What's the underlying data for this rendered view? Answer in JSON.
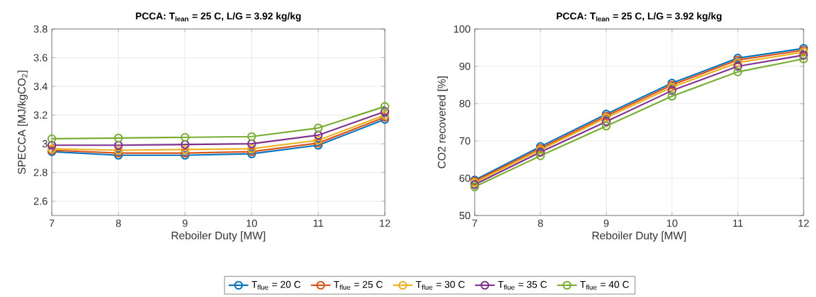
{
  "chart_data": [
    {
      "type": "line",
      "title": "**PCCA: T$_{lean}$ = 25 C, L/G = 3.92 kg/kg**",
      "xlabel": "Reboiler Duty [MW]",
      "ylabel": "SPECCA [MJ/kgCO$_{2}$]",
      "x": [
        7,
        8,
        9,
        10,
        11,
        12
      ],
      "xlim": [
        7,
        12
      ],
      "xticks": [
        7,
        8,
        9,
        10,
        11,
        12
      ],
      "ylim": [
        2.5,
        3.8
      ],
      "yticks": [
        2.6,
        2.8,
        3,
        3.2,
        3.4,
        3.6,
        3.8
      ],
      "grid": true,
      "marker": "circle",
      "line_style": "solid",
      "legend": "bottom",
      "series": [
        {
          "name": "T$_{flue}$ = 20 C",
          "color": "#0072bd",
          "values": [
            2.945,
            2.92,
            2.92,
            2.93,
            2.99,
            3.17
          ]
        },
        {
          "name": "T$_{flue}$ = 25 C",
          "color": "#d95319",
          "values": [
            2.955,
            2.935,
            2.935,
            2.945,
            3.005,
            3.185
          ]
        },
        {
          "name": "T$_{flue}$ = 30 C",
          "color": "#edb120",
          "values": [
            2.965,
            2.955,
            2.96,
            2.965,
            3.025,
            3.2
          ]
        },
        {
          "name": "T$_{flue}$ = 35 C",
          "color": "#7e2f8e",
          "values": [
            2.99,
            2.99,
            2.995,
            3.0,
            3.06,
            3.225
          ]
        },
        {
          "name": "T$_{flue}$ = 40 C",
          "color": "#77ac30",
          "values": [
            3.035,
            3.04,
            3.045,
            3.05,
            3.11,
            3.26
          ]
        }
      ]
    },
    {
      "type": "line",
      "title": "**PCCA: T$_{lean}$ = 25 C, L/G = 3.92 kg/kg**",
      "xlabel": "Reboiler Duty [MW]",
      "ylabel": "CO2 recovered [%]",
      "x": [
        7,
        8,
        9,
        10,
        11,
        12
      ],
      "xlim": [
        7,
        12
      ],
      "xticks": [
        7,
        8,
        9,
        10,
        11,
        12
      ],
      "ylim": [
        50,
        100
      ],
      "yticks": [
        50,
        60,
        70,
        80,
        90,
        100
      ],
      "grid": true,
      "marker": "circle",
      "line_style": "solid",
      "series": [
        {
          "color": "#0072bd",
          "values": [
            59.5,
            68.5,
            77.2,
            85.5,
            92.2,
            94.8
          ]
        },
        {
          "color": "#d95319",
          "values": [
            59.2,
            68,
            76.7,
            85,
            91.7,
            94.3
          ]
        },
        {
          "color": "#edb120",
          "values": [
            58.8,
            67.6,
            76.2,
            84.4,
            91.0,
            93.8
          ]
        },
        {
          "color": "#7e2f8e",
          "values": [
            58.3,
            67,
            75.2,
            83.5,
            90,
            93
          ]
        },
        {
          "color": "#77ac30",
          "values": [
            57.7,
            66,
            74,
            82,
            88.5,
            92
          ]
        }
      ]
    }
  ]
}
